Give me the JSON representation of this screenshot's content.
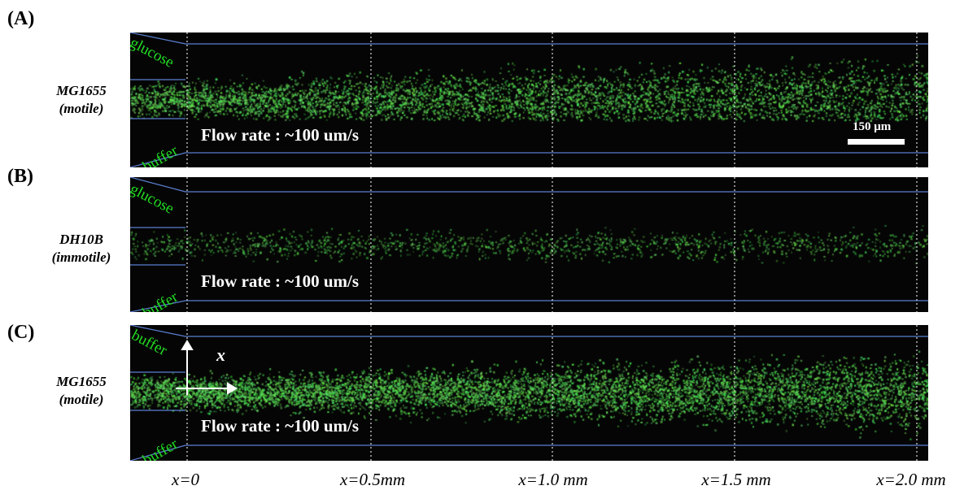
{
  "panels": [
    {
      "label": "(A)",
      "strain": "MG1655",
      "motility": "(motile)",
      "top_inlet": "glucose",
      "bottom_inlet": "buffer",
      "flow_text": "Flow rate : ~100 um/s",
      "green_intensity": "high",
      "scale_bar": "150 μm"
    },
    {
      "label": "(B)",
      "strain": "DH10B",
      "motility": "(immotile)",
      "top_inlet": "glucose",
      "bottom_inlet": "buffer",
      "flow_text": "Flow rate : ~100 um/s",
      "green_intensity": "low"
    },
    {
      "label": "(C)",
      "strain": "MG1655",
      "motility": "(motile)",
      "top_inlet": "buffer",
      "bottom_inlet": "buffer",
      "flow_text": "Flow rate : ~100 um/s",
      "green_intensity": "high",
      "axis_letter": "x"
    }
  ],
  "x_positions": [
    "x=0",
    "x=0.5mm",
    "x=1.0 mm",
    "x=1.5 mm",
    "x=2.0 mm"
  ],
  "colors": {
    "background": "#050505",
    "cells": "#4ee04e",
    "channel_lines": "#5b7fd0",
    "inlet_text": "#22dd22"
  }
}
